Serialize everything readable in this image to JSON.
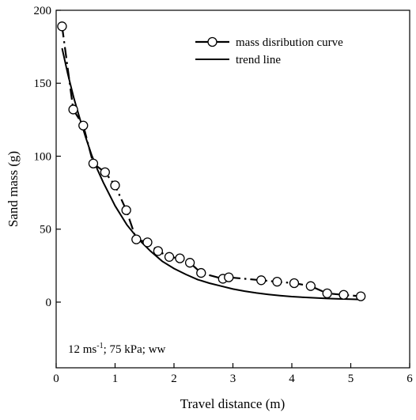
{
  "chart_data": {
    "type": "line",
    "xlabel": "Travel distance (m)",
    "ylabel": "Sand mass (g)",
    "xlim": [
      0,
      6
    ],
    "ylim": [
      -45,
      200
    ],
    "x_ticks": [
      0,
      1,
      2,
      3,
      4,
      5,
      6
    ],
    "y_ticks": [
      0,
      50,
      100,
      150,
      200
    ],
    "grid": false,
    "legend_position": "top-right",
    "annotation": {
      "base": "12 ms",
      "superscript": "-1",
      "rest": "; 75 kPa; ww"
    },
    "series": [
      {
        "name": "mass disribution curve",
        "style": "dash-dot line with open circle markers",
        "color": "#000000",
        "x": [
          0.1,
          0.29,
          0.46,
          0.63,
          0.83,
          1.0,
          1.19,
          1.36,
          1.55,
          1.73,
          1.92,
          2.1,
          2.27,
          2.46,
          2.83,
          2.93,
          3.48,
          3.75,
          4.04,
          4.32,
          4.6,
          4.88,
          5.17
        ],
        "y": [
          189,
          132,
          121,
          95,
          89,
          80,
          63,
          43,
          41,
          35,
          31,
          30,
          27,
          20,
          16,
          17,
          15,
          14,
          13,
          11,
          6,
          5,
          4
        ]
      },
      {
        "name": "trend line",
        "style": "solid line",
        "color": "#000000",
        "x": [
          0.1,
          0.2,
          0.3,
          0.4,
          0.5,
          0.6,
          0.7,
          0.8,
          0.9,
          1.0,
          1.2,
          1.4,
          1.6,
          1.8,
          2.0,
          2.2,
          2.4,
          2.6,
          2.8,
          3.0,
          3.2,
          3.4,
          3.6,
          3.8,
          4.0,
          4.2,
          4.4,
          4.6,
          4.8,
          5.0,
          5.2
        ],
        "y": [
          174,
          156,
          140,
          126,
          113,
          101,
          91,
          82,
          74,
          66,
          53,
          43,
          35,
          28,
          23,
          19,
          15.5,
          13,
          11,
          9,
          7.5,
          6.3,
          5.3,
          4.5,
          3.8,
          3.3,
          2.9,
          2.5,
          2.2,
          2.0,
          1.8
        ]
      }
    ]
  }
}
